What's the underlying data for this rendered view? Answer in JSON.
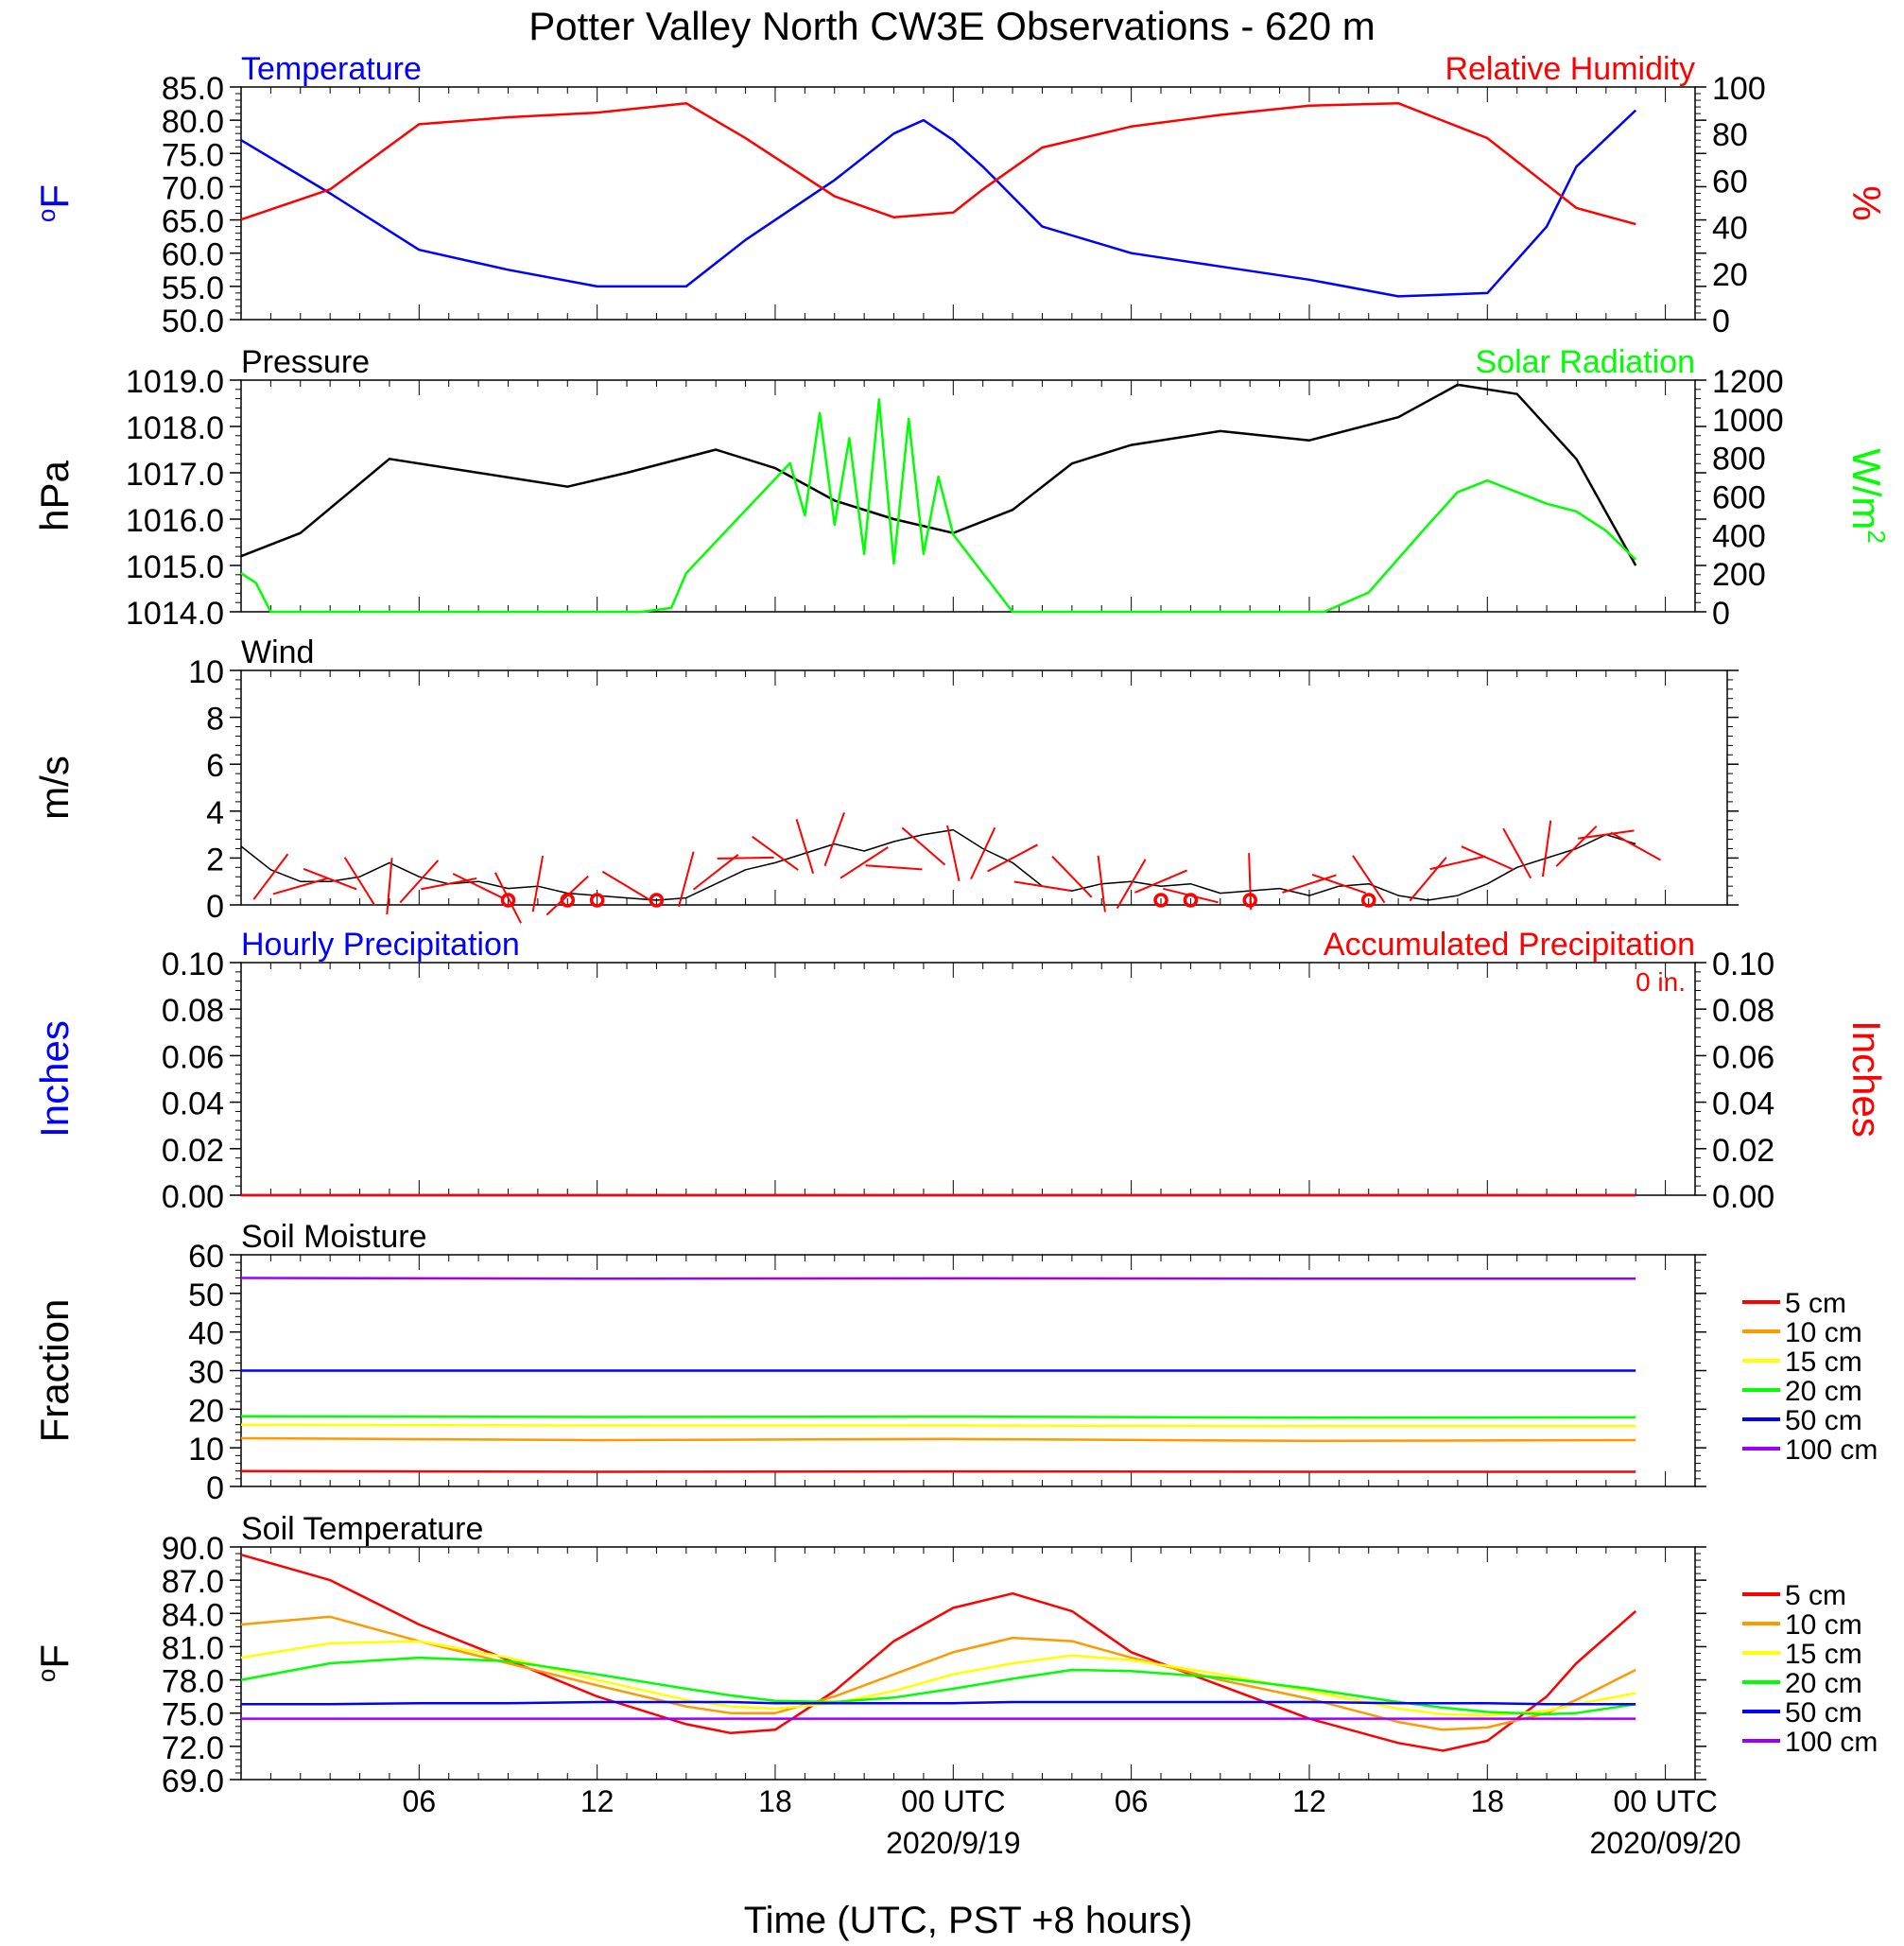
{
  "figure": {
    "title": "Potter Valley North CW3E Observations - 620 m",
    "xlabel": "Time (UTC, PST +8 hours)",
    "x_ticks": [
      "06",
      "12",
      "18",
      "00 UTC",
      "06",
      "12",
      "18",
      "00 UTC"
    ],
    "x_dates": [
      "2020/9/19",
      "2020/09/20"
    ]
  },
  "chart_data": [
    {
      "id": "temp_rh",
      "type": "line",
      "left_title": "Temperature",
      "right_title": "Relative Humidity",
      "ylabel_left": "°F",
      "ylabel_right": "%",
      "ylim_left": [
        50,
        85
      ],
      "ylim_right": [
        0,
        100
      ],
      "left_ticks": [
        "50.0",
        "55.0",
        "60.0",
        "65.0",
        "70.0",
        "75.0",
        "80.0",
        "85.0"
      ],
      "right_ticks": [
        "0",
        "20",
        "40",
        "60",
        "80",
        "100"
      ],
      "x_hours": [
        0,
        3,
        6,
        9,
        12,
        15,
        17,
        20,
        22,
        23,
        24,
        25,
        27,
        30,
        33,
        36,
        39,
        42,
        44,
        45,
        47
      ],
      "series": [
        {
          "name": "Temperature",
          "color": "#0000ff",
          "axis": "left",
          "values": [
            77,
            69,
            60.5,
            57.5,
            55,
            55,
            62,
            71,
            78,
            80,
            77,
            73,
            64,
            60,
            58,
            56,
            53.5,
            54,
            64,
            73,
            81.5
          ]
        },
        {
          "name": "Relative Humidity",
          "color": "#ff0000",
          "axis": "right",
          "values": [
            43,
            56,
            84,
            87,
            89,
            93,
            78,
            53,
            44,
            45,
            46,
            56,
            74,
            83,
            88,
            92,
            93,
            78,
            58,
            48,
            41
          ]
        }
      ]
    },
    {
      "id": "pressure_solar",
      "type": "line",
      "left_title": "Pressure",
      "right_title": "Solar Radiation",
      "ylabel_left": "hPa",
      "ylabel_right": "W/m2",
      "ylim_left": [
        1014,
        1019
      ],
      "ylim_right": [
        0,
        1200
      ],
      "left_ticks": [
        "1014.0",
        "1015.0",
        "1016.0",
        "1017.0",
        "1018.0",
        "1019.0"
      ],
      "right_ticks": [
        "0",
        "200",
        "400",
        "600",
        "800",
        "1000",
        "1200"
      ],
      "series": [
        {
          "name": "Pressure",
          "color": "#000000",
          "axis": "left",
          "x_hours": [
            0,
            2,
            5,
            8,
            11,
            13,
            16,
            18,
            20,
            22,
            24,
            26,
            28,
            30,
            33,
            36,
            39,
            41,
            43,
            45,
            47
          ],
          "values": [
            1015.2,
            1015.7,
            1017.3,
            1017.0,
            1016.7,
            1017.0,
            1017.5,
            1017.1,
            1016.4,
            1016.0,
            1015.7,
            1016.2,
            1017.2,
            1017.6,
            1017.9,
            1017.7,
            1018.2,
            1018.9,
            1018.7,
            1017.3,
            1015.0
          ]
        },
        {
          "name": "Solar Radiation",
          "color": "#00ff00",
          "axis": "right",
          "x_hours": [
            0,
            0.5,
            1,
            13.5,
            14.5,
            15,
            18.5,
            19,
            19.5,
            20,
            20.5,
            21,
            21.5,
            22,
            22.5,
            23,
            23.5,
            24,
            24.5,
            25,
            25.5,
            26,
            36.5,
            38,
            40,
            41,
            42,
            43,
            44,
            45,
            46,
            47
          ],
          "values": [
            200,
            150,
            0,
            0,
            20,
            200,
            770,
            500,
            1030,
            450,
            900,
            300,
            1100,
            250,
            1000,
            300,
            700,
            400,
            300,
            200,
            100,
            0,
            0,
            100,
            450,
            620,
            680,
            620,
            560,
            520,
            420,
            270
          ]
        }
      ]
    },
    {
      "id": "wind",
      "type": "line",
      "left_title": "Wind",
      "ylabel_left": "m/s",
      "ylim_left": [
        0,
        10
      ],
      "left_ticks": [
        "0",
        "2",
        "4",
        "6",
        "8",
        "10"
      ],
      "series": [
        {
          "name": "Wind",
          "color": "#000000",
          "axis": "left",
          "x_hours": [
            0,
            1,
            2,
            3,
            4,
            5,
            6,
            7,
            8,
            9,
            10,
            11,
            12,
            13,
            14,
            15,
            16,
            17,
            18,
            19,
            20,
            21,
            22,
            23,
            24,
            25,
            26,
            27,
            28,
            29,
            30,
            31,
            32,
            33,
            34,
            35,
            36,
            37,
            38,
            39,
            40,
            41,
            42,
            43,
            44,
            45,
            46,
            47
          ],
          "values": [
            2.5,
            1.5,
            1.0,
            1.0,
            1.2,
            1.8,
            1.2,
            0.9,
            1.0,
            0.7,
            0.8,
            0.5,
            0.4,
            0.3,
            0.2,
            0.3,
            0.9,
            1.5,
            1.8,
            2.2,
            2.6,
            2.3,
            2.7,
            3.0,
            3.2,
            2.4,
            1.8,
            0.8,
            0.6,
            0.9,
            1.0,
            0.8,
            0.9,
            0.5,
            0.6,
            0.7,
            0.4,
            0.8,
            0.9,
            0.4,
            0.2,
            0.4,
            0.9,
            1.6,
            2.0,
            2.4,
            3.0,
            2.6
          ]
        }
      ],
      "wind_barbs": {
        "color": "#ff0000",
        "x_hours": [
          1,
          2,
          3,
          4,
          5,
          6,
          7,
          8,
          9,
          10,
          11,
          12,
          13,
          14,
          15,
          16,
          17,
          18,
          19,
          20,
          21,
          22,
          23,
          24,
          25,
          26,
          27,
          28,
          29,
          30,
          31,
          32,
          33,
          34,
          35,
          36,
          37,
          38,
          39,
          40,
          41,
          42,
          43,
          44,
          45,
          46,
          47
        ],
        "speed": [
          1.2,
          0.8,
          1.1,
          1.0,
          0.8,
          1.0,
          0.9,
          0.8,
          0.3,
          0.9,
          0.4,
          0.0,
          0.8,
          0.0,
          1.1,
          1.4,
          2.0,
          2.2,
          2.5,
          2.8,
          1.8,
          1.6,
          2.5,
          2.2,
          2.2,
          2.0,
          0.8,
          1.2,
          0.9,
          0.9,
          1.0,
          0.4,
          0.0,
          1.0,
          0.0,
          0.9,
          0.9,
          1.1,
          0.0,
          1.1,
          1.8,
          2.0,
          2.2,
          2.4,
          2.5,
          3.0,
          2.5
        ],
        "calm_x_hours": [
          9,
          11,
          12,
          14,
          31,
          32,
          34,
          38
        ]
      }
    },
    {
      "id": "precip",
      "type": "line",
      "left_title": "Hourly Precipitation",
      "right_title": "Accumulated Precipitation",
      "annotation": "0 in.",
      "ylabel_left": "Inches",
      "ylabel_right": "Inches",
      "ylim_left": [
        0,
        0.1
      ],
      "ylim_right": [
        0,
        0.1
      ],
      "left_ticks": [
        "0.00",
        "0.02",
        "0.04",
        "0.06",
        "0.08",
        "0.10"
      ],
      "right_ticks": [
        "0.00",
        "0.02",
        "0.04",
        "0.06",
        "0.08",
        "0.10"
      ],
      "x_hours": [
        0,
        47
      ],
      "series": [
        {
          "name": "Hourly Precipitation",
          "color": "#0000ff",
          "axis": "left",
          "values": [
            0,
            0
          ]
        },
        {
          "name": "Accumulated Precipitation",
          "color": "#ff0000",
          "axis": "right",
          "values": [
            0,
            0
          ]
        }
      ]
    },
    {
      "id": "soil_moisture",
      "type": "line",
      "left_title": "Soil Moisture",
      "ylabel_left": "Fraction",
      "ylim_left": [
        0,
        60
      ],
      "left_ticks": [
        "0",
        "10",
        "20",
        "30",
        "40",
        "50",
        "60"
      ],
      "x_hours": [
        0,
        12,
        24,
        36,
        47
      ],
      "series": [
        {
          "name": "5 cm",
          "color": "#ff0000",
          "values": [
            4.0,
            3.8,
            3.9,
            3.8,
            3.8
          ]
        },
        {
          "name": "10 cm",
          "color": "#ff9900",
          "values": [
            12.5,
            12.0,
            12.3,
            11.8,
            12.0
          ]
        },
        {
          "name": "15 cm",
          "color": "#ffff00",
          "values": [
            16.0,
            15.8,
            15.8,
            15.6,
            15.6
          ]
        },
        {
          "name": "20 cm",
          "color": "#00ff00",
          "values": [
            18.2,
            18.0,
            18.1,
            17.8,
            17.9
          ]
        },
        {
          "name": "50 cm",
          "color": "#0000ff",
          "values": [
            30.0,
            30.0,
            30.0,
            30.0,
            30.0
          ]
        },
        {
          "name": "100 cm",
          "color": "#9900ff",
          "values": [
            54.0,
            53.8,
            53.9,
            53.8,
            53.8
          ]
        }
      ]
    },
    {
      "id": "soil_temp",
      "type": "line",
      "left_title": "Soil Temperature",
      "ylabel_left": "°F",
      "ylim_left": [
        69,
        90
      ],
      "left_ticks": [
        "69.0",
        "72.0",
        "75.0",
        "78.0",
        "81.0",
        "84.0",
        "87.0",
        "90.0"
      ],
      "x_hours": [
        0,
        3,
        6,
        9,
        12,
        15,
        16.5,
        18,
        20,
        22,
        24,
        26,
        28,
        30,
        33,
        36,
        39,
        40.5,
        42,
        44,
        45,
        47
      ],
      "series": [
        {
          "name": "5 cm",
          "color": "#ff0000",
          "values": [
            89.3,
            87,
            83,
            79.8,
            76.5,
            74,
            73.2,
            73.5,
            77,
            81.5,
            84.5,
            85.8,
            84.2,
            80.5,
            77.5,
            74.5,
            72.3,
            71.6,
            72.5,
            76.5,
            79.5,
            84.2
          ]
        },
        {
          "name": "10 cm",
          "color": "#ff9900",
          "values": [
            83,
            83.7,
            81.5,
            79.5,
            77.5,
            75.6,
            75,
            75,
            76.5,
            78.5,
            80.5,
            81.8,
            81.5,
            80,
            78,
            76.3,
            74.2,
            73.5,
            73.7,
            75,
            76.2,
            78.9
          ]
        },
        {
          "name": "15 cm",
          "color": "#ffff00",
          "values": [
            80,
            81.3,
            81.5,
            80,
            78,
            76.2,
            75.6,
            75.4,
            75.9,
            77,
            78.5,
            79.5,
            80.2,
            79.8,
            78.5,
            77,
            75.4,
            74.9,
            74.8,
            75.2,
            75.8,
            76.8
          ]
        },
        {
          "name": "20 cm",
          "color": "#00ff00",
          "values": [
            78,
            79.5,
            80,
            79.7,
            78.5,
            77.2,
            76.6,
            76.1,
            76.0,
            76.4,
            77.2,
            78.1,
            78.9,
            78.8,
            78.2,
            77.2,
            76.0,
            75.5,
            75.1,
            74.9,
            75.0,
            75.8
          ]
        },
        {
          "name": "50 cm",
          "color": "#0000ff",
          "values": [
            75.8,
            75.8,
            75.9,
            75.9,
            76.0,
            76.0,
            76.0,
            75.9,
            75.9,
            75.9,
            75.9,
            76.0,
            76.0,
            76.0,
            76.0,
            76.0,
            75.9,
            75.9,
            75.9,
            75.8,
            75.8,
            75.8
          ]
        },
        {
          "name": "100 cm",
          "color": "#9900ff",
          "values": [
            74.5,
            74.5,
            74.5,
            74.5,
            74.5,
            74.5,
            74.5,
            74.5,
            74.5,
            74.5,
            74.5,
            74.5,
            74.5,
            74.5,
            74.5,
            74.5,
            74.5,
            74.5,
            74.5,
            74.5,
            74.5,
            74.5
          ]
        }
      ]
    }
  ]
}
